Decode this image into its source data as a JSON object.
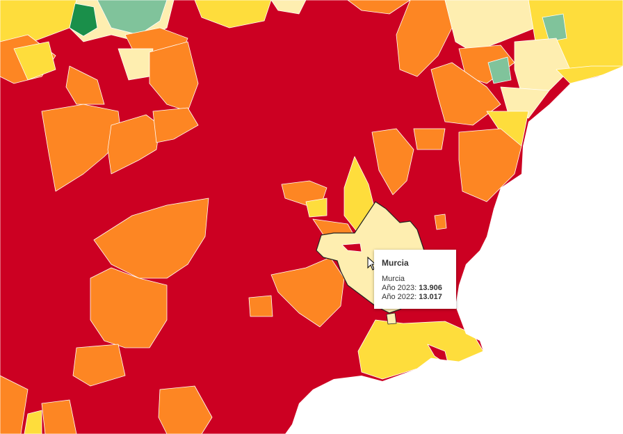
{
  "map": {
    "colors": {
      "very_high": "#cc0022",
      "high": "#fd8623",
      "medium": "#fedd3c",
      "low": "#feeeb0",
      "lower": "#80c39b",
      "lowest": "#1a8f4a",
      "sea": "#ffffff",
      "border": "#ffffff"
    },
    "highlighted_region": "Murcia"
  },
  "tooltip": {
    "title": "Murcia",
    "name": "Murcia",
    "line1_label": "Año 2023:",
    "line1_value": "13.906",
    "line2_label": "Año 2022:",
    "line2_value": "13.017"
  },
  "cursor_icon": "arrow-cursor-icon"
}
